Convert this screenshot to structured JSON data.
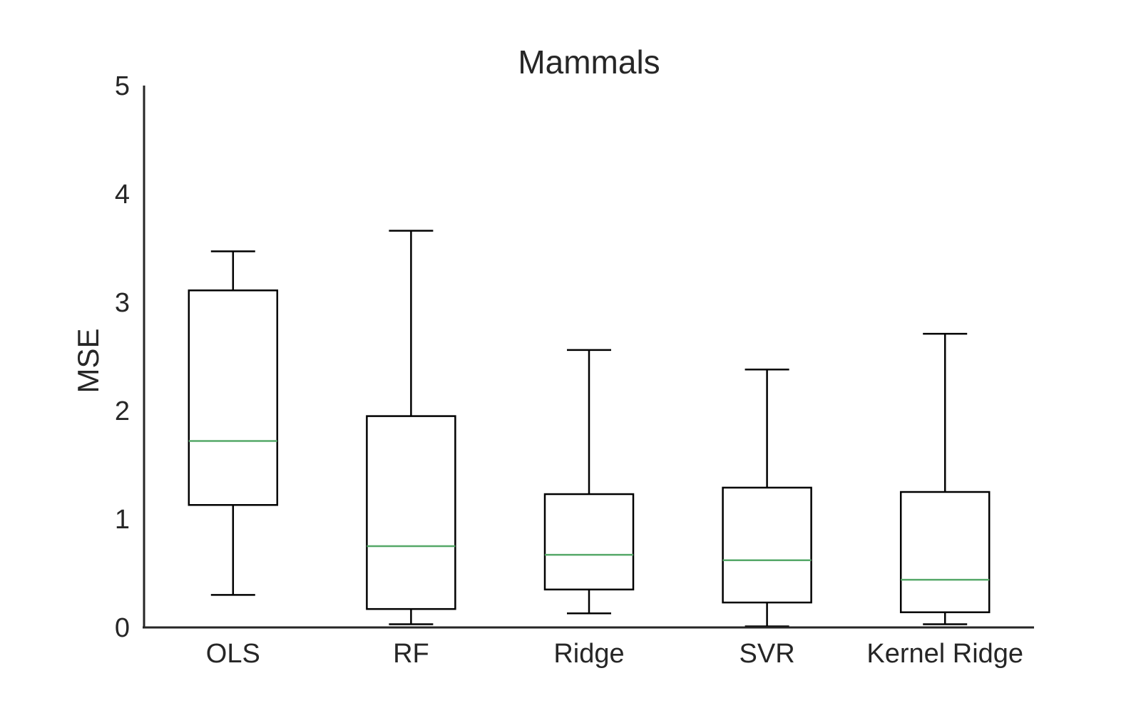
{
  "chart_data": {
    "type": "box",
    "title": "Mammals",
    "xlabel": "",
    "ylabel": "MSE",
    "ylim": [
      0,
      5
    ],
    "yticks": [
      "0",
      "1",
      "2",
      "3",
      "4",
      "5"
    ],
    "grid": false,
    "categories": [
      "OLS",
      "RF",
      "Ridge",
      "SVR",
      "Kernel Ridge"
    ],
    "boxes": [
      {
        "whisker_low": 0.3,
        "q1": 1.13,
        "median": 1.72,
        "q3": 3.11,
        "whisker_high": 3.47
      },
      {
        "whisker_low": 0.03,
        "q1": 0.17,
        "median": 0.75,
        "q3": 1.95,
        "whisker_high": 3.66
      },
      {
        "whisker_low": 0.13,
        "q1": 0.35,
        "median": 0.67,
        "q3": 1.23,
        "whisker_high": 2.56
      },
      {
        "whisker_low": 0.01,
        "q1": 0.23,
        "median": 0.62,
        "q3": 1.29,
        "whisker_high": 2.38
      },
      {
        "whisker_low": 0.03,
        "q1": 0.14,
        "median": 0.44,
        "q3": 1.25,
        "whisker_high": 2.71
      }
    ],
    "colors": {
      "box_edge": "#000000",
      "median": "#55a868",
      "axis": "#262626"
    }
  }
}
